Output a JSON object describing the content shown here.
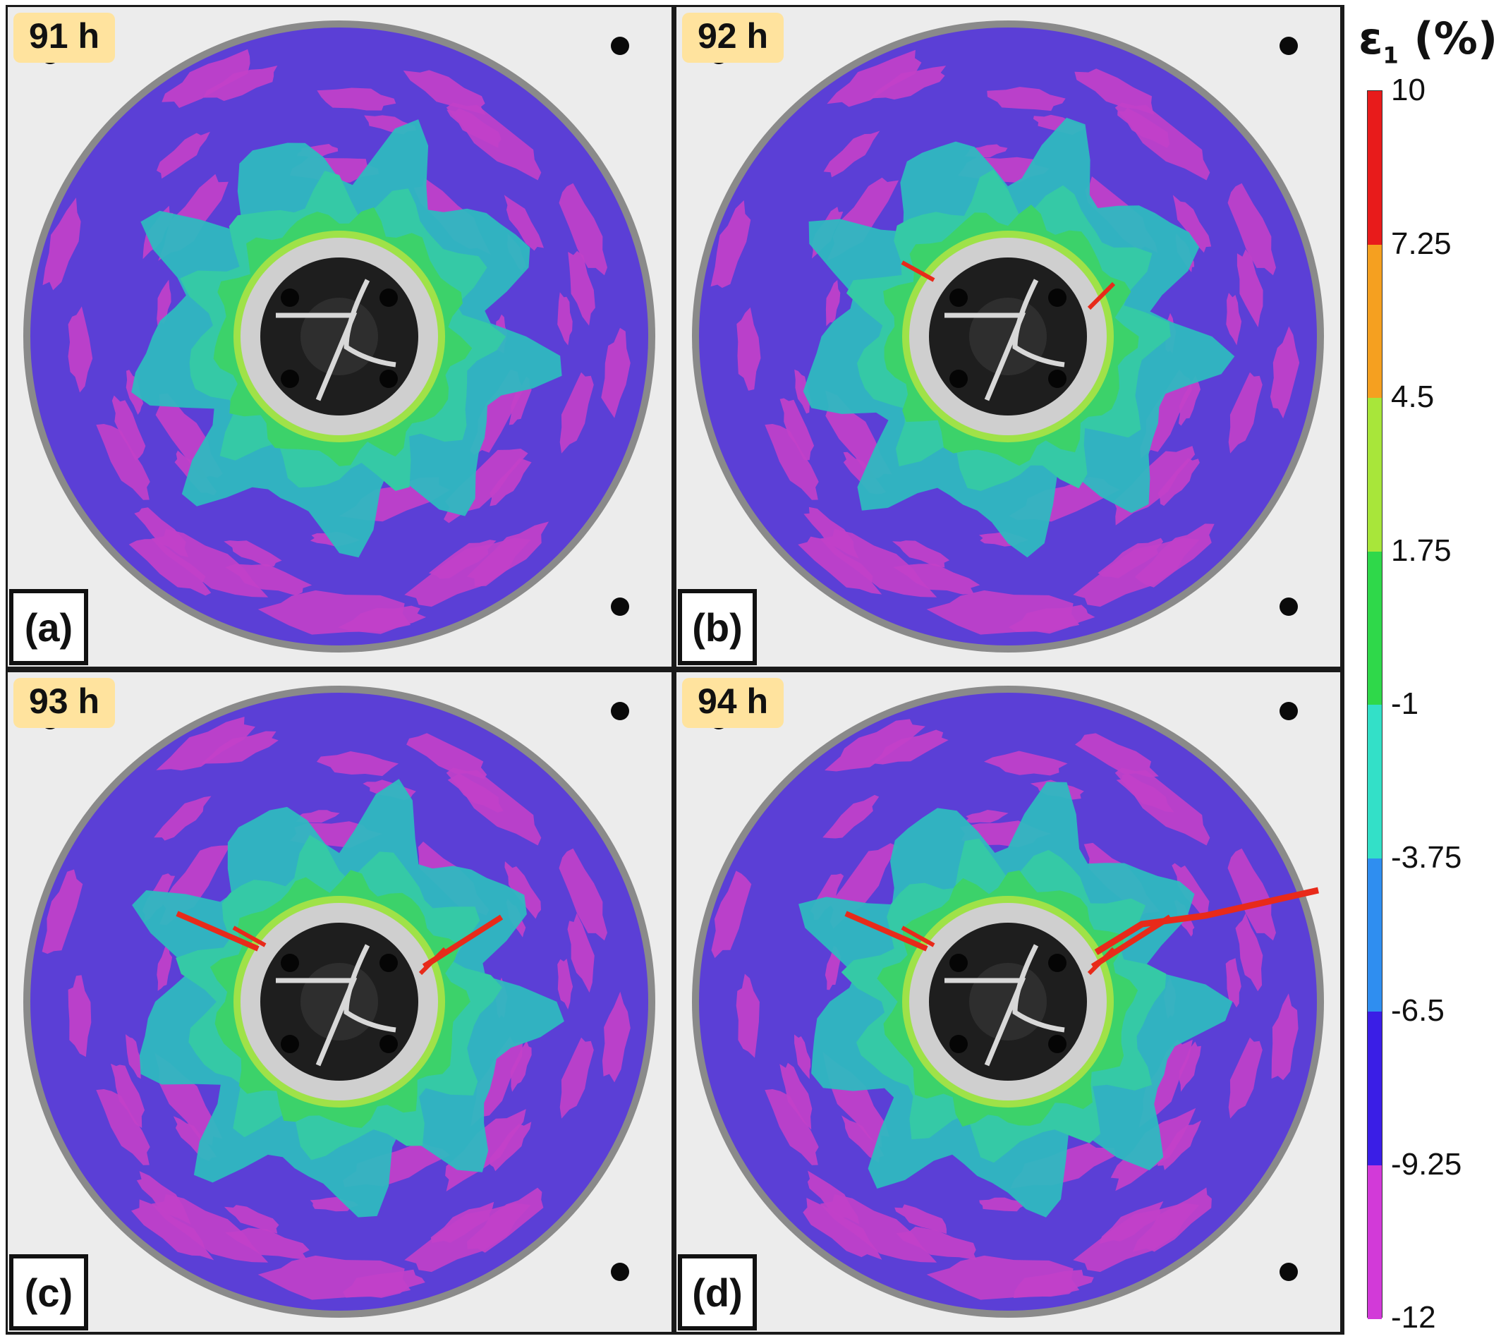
{
  "panels": [
    {
      "id": "a",
      "time": "91 h",
      "label": "(a)"
    },
    {
      "id": "b",
      "time": "92 h",
      "label": "(b)"
    },
    {
      "id": "c",
      "time": "93 h",
      "label": "(c)"
    },
    {
      "id": "d",
      "time": "94 h",
      "label": "(d)"
    }
  ],
  "colorbar": {
    "title_symbol": "ε",
    "title_subscript": "1",
    "title_unit": " (%)",
    "ticks": [
      "10",
      "7.25",
      "4.5",
      "1.75",
      "-1",
      "-3.75",
      "-6.5",
      "-9.25",
      "-12"
    ],
    "colors": [
      "#e81b1b",
      "#f5a020",
      "#a8e63a",
      "#2fd84a",
      "#33e0c8",
      "#2f8ef0",
      "#3a1ee6",
      "#d23ad8"
    ]
  },
  "palette": {
    "purple": "#5b3fd6",
    "magenta": "#c240c9",
    "cyan": "#2fb8c0",
    "blue": "#2a6fe0",
    "green": "#3cd26a",
    "yellow": "#c9e83a",
    "red": "#e82a1a",
    "ring": "#8a8a8a",
    "hub": "#cfcfcf",
    "hole": "#1e1e1e"
  },
  "crack_level": [
    0,
    1,
    2,
    3
  ]
}
